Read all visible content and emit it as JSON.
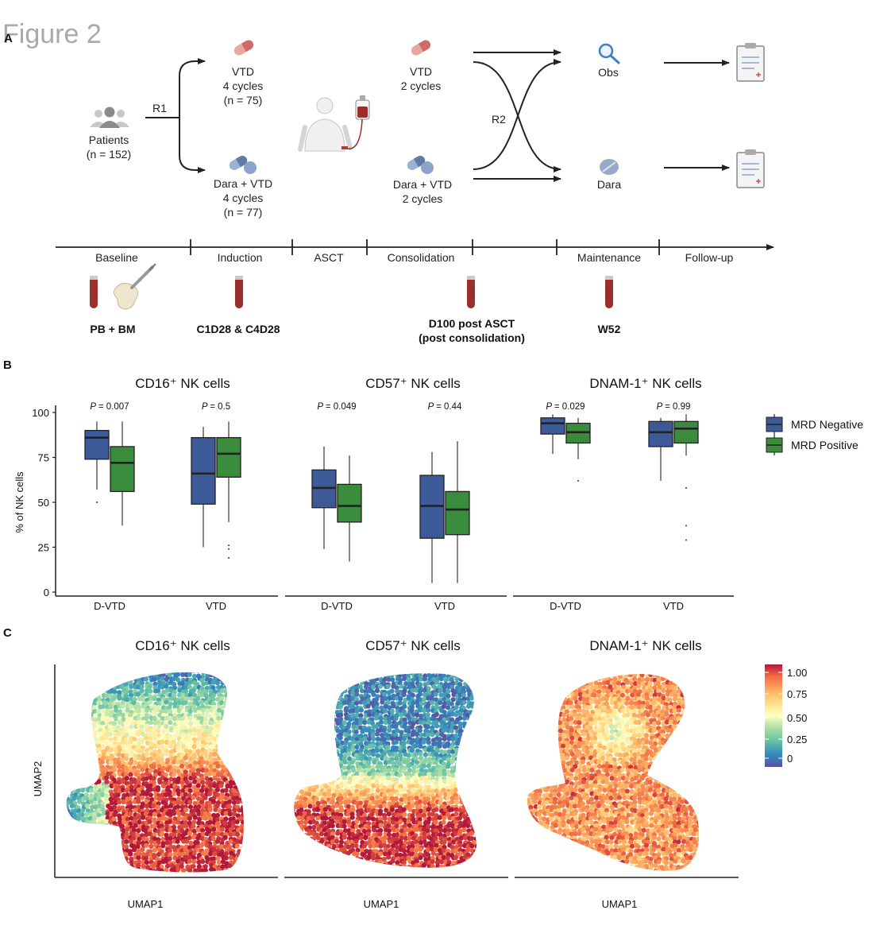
{
  "figure_title": "Figure 2",
  "colors": {
    "mrd_negative": "#3d5a98",
    "mrd_positive": "#3a8c3c",
    "flow_line": "#222222",
    "capsule_red": "#d9706e",
    "capsule_blue": "#7f97c0",
    "blood_tube": "#9b2f2b"
  },
  "panel_a": {
    "letter": "A",
    "patients": {
      "label": "Patients",
      "n": "(n = 152)"
    },
    "r1_label": "R1",
    "arm_vtd": {
      "line1": "VTD",
      "line2": "4 cycles",
      "line3": "(n = 75)"
    },
    "arm_dara": {
      "line1": "Dara + VTD",
      "line2": "4 cycles",
      "line3": "(n = 77)"
    },
    "consol_vtd": {
      "line1": "VTD",
      "line2": "2 cycles"
    },
    "consol_dara": {
      "line1": "Dara + VTD",
      "line2": "2 cycles"
    },
    "r2_label": "R2",
    "maint_obs": "Obs",
    "maint_dara": "Dara",
    "phases": [
      "Baseline",
      "Induction",
      "ASCT",
      "Consolidation",
      "Maintenance",
      "Follow-up"
    ],
    "samples": {
      "baseline": "PB  +  BM",
      "induction": "C1D28 & C4D28",
      "post_asct_line1": "D100 post ASCT",
      "post_asct_line2": "(post consolidation)",
      "maintenance": "W52"
    }
  },
  "panel_b": {
    "letter": "B",
    "y_axis_title": "% of NK  cells",
    "legend": {
      "negative": "MRD Negative",
      "positive": "MRD Positive"
    }
  },
  "panel_c": {
    "letter": "C",
    "titles": [
      "CD16⁺ NK cells",
      "CD57⁺ NK cells",
      "DNAM-1⁺ NK cells"
    ],
    "y_axis_title": "UMAP2",
    "x_axis_title": "UMAP1",
    "colorbar_ticks": [
      "1.00",
      "0.75",
      "0.50",
      "0.25",
      "0"
    ]
  },
  "chart_data": [
    {
      "type": "box",
      "title": "CD16⁺ NK cells",
      "ylabel": "% of NK  cells",
      "ylim": [
        0,
        100
      ],
      "yticks": [
        0,
        25,
        50,
        75,
        100
      ],
      "categories": [
        "D-VTD",
        "VTD"
      ],
      "pvalues": [
        "= 0.007",
        "= 0.5"
      ],
      "series": [
        {
          "name": "MRD Negative",
          "boxes": [
            {
              "whislo": 57,
              "q1": 74,
              "med": 86,
              "q3": 90,
              "whishi": 95,
              "fliers": [
                50
              ]
            },
            {
              "whislo": 25,
              "q1": 49,
              "med": 66,
              "q3": 86,
              "whishi": 92,
              "fliers": []
            }
          ]
        },
        {
          "name": "MRD Positive",
          "boxes": [
            {
              "whislo": 37,
              "q1": 56,
              "med": 72,
              "q3": 81,
              "whishi": 95,
              "fliers": []
            },
            {
              "whislo": 39,
              "q1": 64,
              "med": 77,
              "q3": 86,
              "whishi": 95,
              "fliers": [
                26,
                24,
                19
              ]
            }
          ]
        }
      ]
    },
    {
      "type": "box",
      "title": "CD57⁺ NK cells",
      "ylim": [
        0,
        100
      ],
      "categories": [
        "D-VTD",
        "VTD"
      ],
      "pvalues": [
        "= 0.049",
        "= 0.44"
      ],
      "series": [
        {
          "name": "MRD Negative",
          "boxes": [
            {
              "whislo": 24,
              "q1": 47,
              "med": 58,
              "q3": 68,
              "whishi": 81,
              "fliers": []
            },
            {
              "whislo": 5,
              "q1": 30,
              "med": 48,
              "q3": 65,
              "whishi": 78,
              "fliers": []
            }
          ]
        },
        {
          "name": "MRD Positive",
          "boxes": [
            {
              "whislo": 17,
              "q1": 39,
              "med": 48,
              "q3": 60,
              "whishi": 76,
              "fliers": []
            },
            {
              "whislo": 5,
              "q1": 32,
              "med": 46,
              "q3": 56,
              "whishi": 84,
              "fliers": []
            }
          ]
        }
      ]
    },
    {
      "type": "box",
      "title": "DNAM-1⁺ NK cells",
      "ylim": [
        0,
        100
      ],
      "categories": [
        "D-VTD",
        "VTD"
      ],
      "pvalues": [
        "= 0.029",
        "= 0.99"
      ],
      "series": [
        {
          "name": "MRD Negative",
          "boxes": [
            {
              "whislo": 77,
              "q1": 88,
              "med": 94,
              "q3": 97,
              "whishi": 99,
              "fliers": []
            },
            {
              "whislo": 62,
              "q1": 81,
              "med": 89,
              "q3": 95,
              "whishi": 97,
              "fliers": []
            }
          ]
        },
        {
          "name": "MRD Positive",
          "boxes": [
            {
              "whislo": 74,
              "q1": 83,
              "med": 89,
              "q3": 94,
              "whishi": 97,
              "fliers": [
                62
              ]
            },
            {
              "whislo": 76,
              "q1": 83,
              "med": 91,
              "q3": 95,
              "whishi": 99,
              "fliers": [
                58,
                37,
                29
              ]
            }
          ]
        }
      ]
    },
    {
      "type": "scatter",
      "title": "CD16⁺ NK cells",
      "xlabel": "UMAP1",
      "ylabel": "UMAP2",
      "color_scale": {
        "min": 0,
        "max": 1,
        "palette": "Spectral"
      },
      "pattern": "low expression (blue) in upper-left lobe and small left island; high (red) across lower body"
    },
    {
      "type": "scatter",
      "title": "CD57⁺ NK cells",
      "xlabel": "UMAP1",
      "ylabel": "UMAP2",
      "color_scale": {
        "min": 0,
        "max": 1,
        "palette": "Spectral"
      },
      "pattern": "low expression (blue) across upper half; high (red) in lower half"
    },
    {
      "type": "scatter",
      "title": "DNAM-1⁺ NK cells",
      "xlabel": "UMAP1",
      "ylabel": "UMAP2",
      "color_scale": {
        "min": 0,
        "max": 1,
        "palette": "Spectral"
      },
      "pattern": "high expression (orange/red) nearly everywhere with small mid-range patch in upper region"
    }
  ]
}
